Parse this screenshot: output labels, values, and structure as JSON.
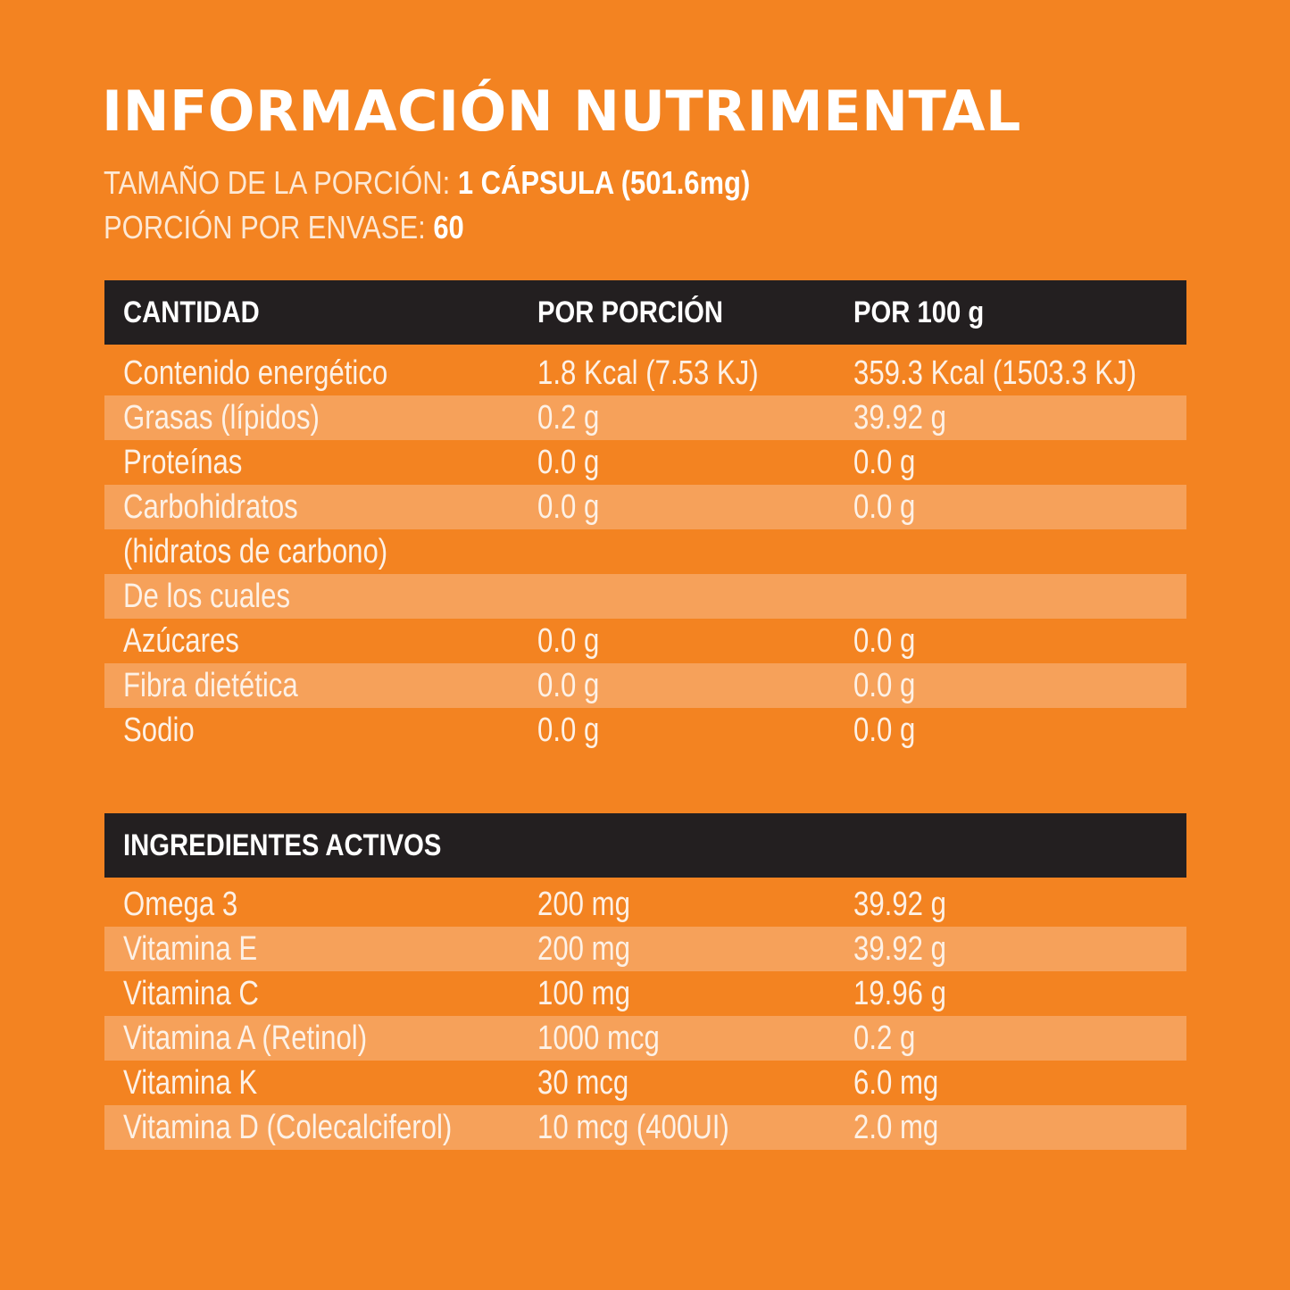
{
  "title": "INFORMACIÓN NUTRIMENTAL",
  "serving": {
    "size_label": "TAMAÑO DE LA PORCIÓN:",
    "size_value": "1 CÁPSULA (501.6mg)",
    "per_container_label": "PORCIÓN POR ENVASE:",
    "per_container_value": "60"
  },
  "nutrition": {
    "headers": [
      "CANTIDAD",
      "POR PORCIÓN",
      "POR 100 g"
    ],
    "rows": [
      [
        "Contenido energético",
        "1.8 Kcal (7.53 KJ)",
        "359.3 Kcal (1503.3 KJ)"
      ],
      [
        "Grasas (lípidos)",
        "0.2 g",
        "39.92 g"
      ],
      [
        "Proteínas",
        "0.0 g",
        "0.0 g"
      ],
      [
        "Carbohidratos",
        "0.0 g",
        "0.0 g"
      ],
      [
        "(hidratos de carbono)",
        "",
        ""
      ],
      [
        "De los cuales",
        "",
        ""
      ],
      [
        "Azúcares",
        "0.0 g",
        "0.0 g"
      ],
      [
        "Fibra dietética",
        "0.0 g",
        "0.0 g"
      ],
      [
        "Sodio",
        "0.0 g",
        "0.0 g"
      ]
    ]
  },
  "active": {
    "header": "INGREDIENTES ACTIVOS",
    "rows": [
      [
        "Omega 3",
        "200 mg",
        "39.92 g"
      ],
      [
        "Vitamina E",
        "200 mg",
        "39.92 g"
      ],
      [
        "Vitamina C",
        "100 mg",
        "19.96 g"
      ],
      [
        "Vitamina A (Retinol)",
        "1000 mcg",
        "0.2 g"
      ],
      [
        "Vitamina K",
        "30 mcg",
        "6.0 mg"
      ],
      [
        "Vitamina D (Colecalciferol)",
        "10 mcg (400UI)",
        "2.0 mg"
      ]
    ]
  },
  "colors": {
    "background": "#f38321",
    "row_stripe": "#f6a15a",
    "header_bar": "#231f20",
    "text": "#ffffff"
  }
}
